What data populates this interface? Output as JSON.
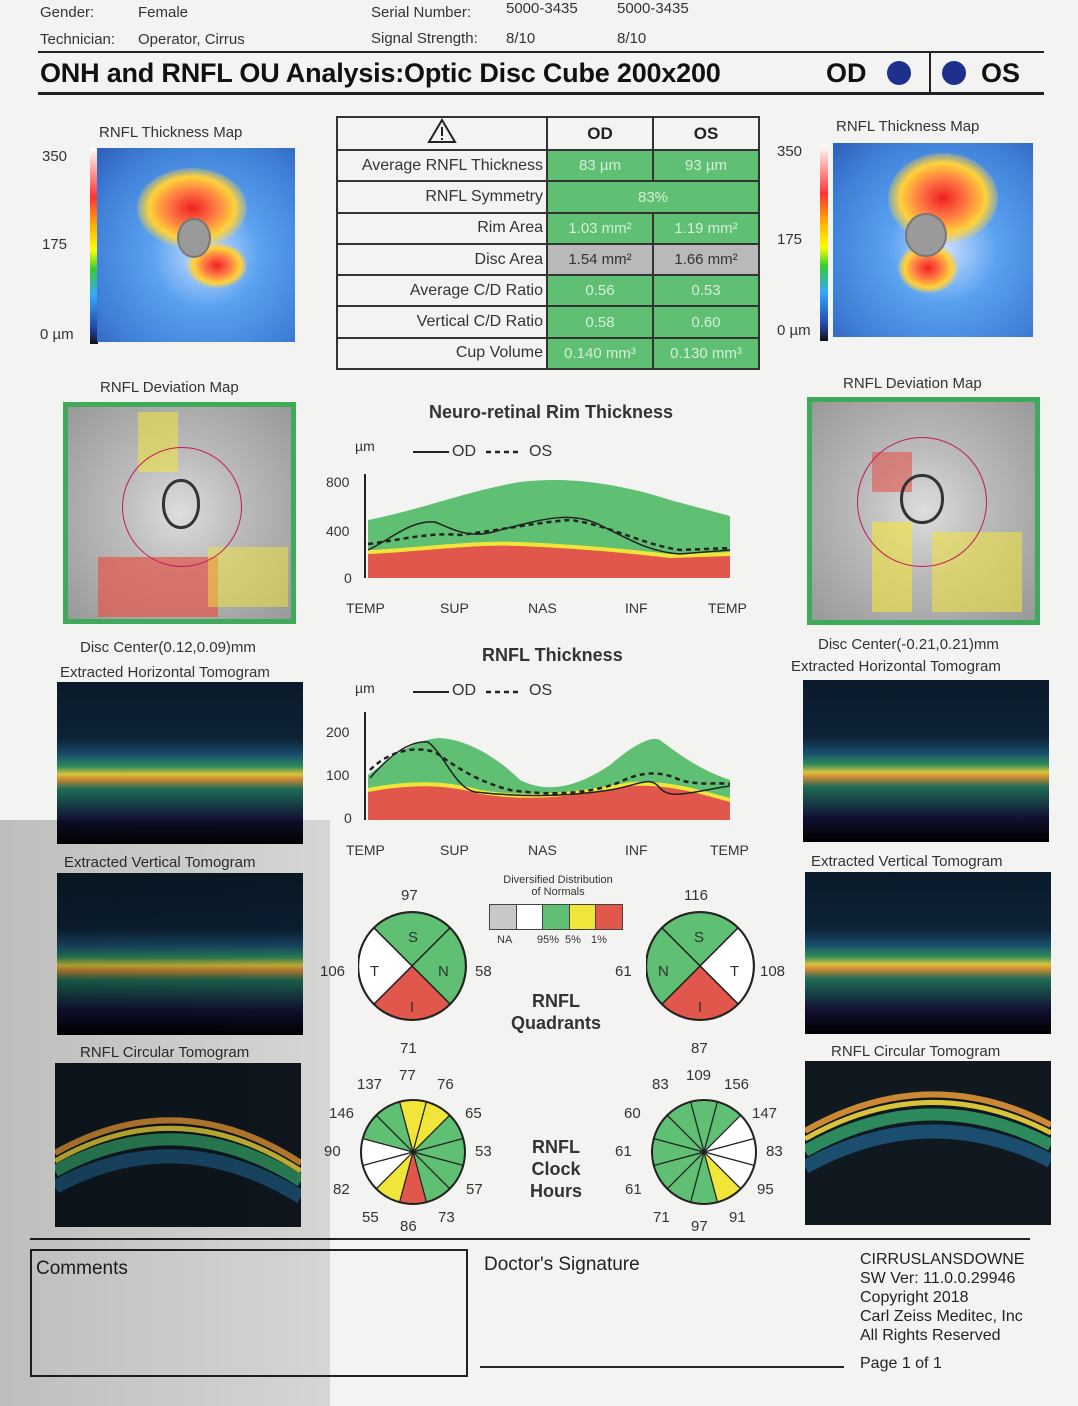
{
  "header": {
    "gender_label": "Gender:",
    "gender_value": "Female",
    "technician_label": "Technician:",
    "technician_value": "Operator, Cirrus",
    "serial_label": "Serial Number:",
    "serial_od": "5000-3435",
    "serial_os": "5000-3435",
    "signal_label": "Signal Strength:",
    "signal_od": "8/10",
    "signal_os": "8/10"
  },
  "title": "ONH and RNFL OU Analysis:Optic Disc Cube 200x200",
  "eyes": {
    "od": "OD",
    "os": "OS"
  },
  "od": {
    "thickness_map_title": "RNFL Thickness Map",
    "scale_top": "350",
    "scale_mid": "175",
    "scale_bottom": "0 µm",
    "deviation_map_title": "RNFL Deviation Map",
    "disc_center": "Disc Center(0.12,0.09)mm",
    "horizontal_tomogram_title": "Extracted Horizontal Tomogram",
    "vertical_tomogram_title": "Extracted Vertical Tomogram",
    "circular_tomogram_title": "RNFL Circular Tomogram"
  },
  "os": {
    "thickness_map_title": "RNFL Thickness Map",
    "scale_top": "350",
    "scale_mid": "175",
    "scale_bottom": "0 µm",
    "deviation_map_title": "RNFL Deviation Map",
    "disc_center": "Disc Center(-0.21,0.21)mm",
    "horizontal_tomogram_title": "Extracted Horizontal Tomogram",
    "vertical_tomogram_title": "Extracted Vertical Tomogram",
    "circular_tomogram_title": "RNFL Circular Tomogram"
  },
  "metrics": {
    "header_od": "OD",
    "header_os": "OS",
    "rows": [
      {
        "label": "Average RNFL Thickness",
        "od": "83 µm",
        "os": "93 µm"
      },
      {
        "label": "RNFL Symmetry",
        "both": "83%"
      },
      {
        "label": "Rim Area",
        "od": "1.03 mm²",
        "os": "1.19 mm²"
      },
      {
        "label": "Disc Area",
        "od": "1.54 mm²",
        "os": "1.66 mm²"
      },
      {
        "label": "Average C/D Ratio",
        "od": "0.56",
        "os": "0.53"
      },
      {
        "label": "Vertical C/D Ratio",
        "od": "0.58",
        "os": "0.60"
      },
      {
        "label": "Cup Volume",
        "od": "0.140 mm³",
        "os": "0.130 mm³"
      }
    ]
  },
  "rim_chart": {
    "title": "Neuro-retinal Rim Thickness",
    "unit": "µm",
    "legend_od": "OD",
    "legend_os": "OS",
    "y_ticks": [
      "800",
      "400",
      "0"
    ],
    "x_labels": [
      "TEMP",
      "SUP",
      "NAS",
      "INF",
      "TEMP"
    ]
  },
  "rnfl_chart": {
    "title": "RNFL Thickness",
    "unit": "µm",
    "legend_od": "OD",
    "legend_os": "OS",
    "y_ticks": [
      "200",
      "100",
      "0"
    ],
    "x_labels": [
      "TEMP",
      "SUP",
      "NAS",
      "INF",
      "TEMP"
    ]
  },
  "distribution_legend": {
    "title": "Diversified Distribution of Normals",
    "labels": [
      "NA",
      "95%",
      "5%",
      "1%"
    ],
    "colors": [
      "#c8c8c8",
      "#ffffff",
      "#5fbf72",
      "#f2e53a",
      "#e2574c"
    ]
  },
  "quadrants": {
    "label": "RNFL Quadrants",
    "od": {
      "S": "97",
      "N": "58",
      "I": "71",
      "T": "106",
      "letters": [
        "S",
        "N",
        "I",
        "T"
      ]
    },
    "os": {
      "S": "116",
      "N": "61",
      "I": "87",
      "T": "108",
      "letters": [
        "S",
        "N",
        "I",
        "T"
      ]
    }
  },
  "clock_hours": {
    "label": "RNFL Clock Hours",
    "od": [
      "77",
      "76",
      "65",
      "53",
      "57",
      "73",
      "86",
      "55",
      "82",
      "90",
      "146",
      "137"
    ],
    "os": [
      "109",
      "156",
      "147",
      "83",
      "95",
      "91",
      "97",
      "71",
      "61",
      "61",
      "60",
      "83"
    ]
  },
  "colors": {
    "normal_green": "#5fbf72",
    "border_yellow": "#f2e53a",
    "outside_red": "#e2574c",
    "above_white": "#ffffff",
    "eye_blue": "#1f2f8c"
  },
  "footer": {
    "comments_label": "Comments",
    "signature_label": "Doctor's Signature",
    "device_name": "CIRRUSLANSDOWNE",
    "sw_version": "SW Ver: 11.0.0.29946",
    "copyright": "Copyright 2018",
    "company": "Carl Zeiss Meditec, Inc",
    "rights": "All Rights Reserved",
    "page": "Page 1 of 1"
  }
}
